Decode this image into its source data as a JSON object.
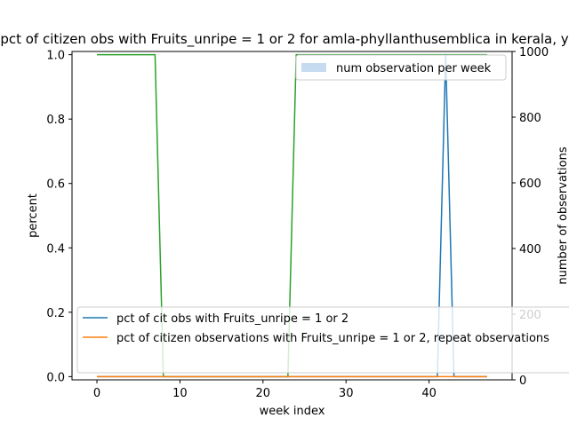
{
  "chart_data": {
    "type": "line",
    "title": "pct of citizen obs with Fruits_unripe = 1 or 2 for amla-phyllanthusemblica in kerala, y",
    "xlabel": "week index",
    "ylabel": "percent",
    "y2label": "number of observations",
    "xlim": [
      -3,
      50
    ],
    "ylim": [
      -0.01,
      1.01
    ],
    "y2lim": [
      0,
      1000
    ],
    "xticks": [
      0,
      10,
      20,
      30,
      40
    ],
    "yticks": [
      0.0,
      0.2,
      0.4,
      0.6,
      0.8,
      1.0
    ],
    "y2ticks": [
      0,
      200,
      400,
      600,
      800,
      1000
    ],
    "x": [
      0,
      1,
      2,
      3,
      4,
      5,
      6,
      7,
      8,
      9,
      10,
      11,
      12,
      13,
      14,
      15,
      16,
      17,
      18,
      19,
      20,
      21,
      22,
      23,
      24,
      25,
      26,
      27,
      28,
      29,
      30,
      31,
      32,
      33,
      34,
      35,
      36,
      37,
      38,
      39,
      40,
      41,
      42,
      43,
      44,
      45,
      46,
      47
    ],
    "series": [
      {
        "name": "pct of cit obs with Fruits_unripe = 1 or 2",
        "color": "#1f77b4",
        "axis": "left",
        "values": [
          0,
          0,
          0,
          0,
          0,
          0,
          0,
          0,
          0,
          0,
          0,
          0,
          0,
          0,
          0,
          0,
          0,
          0,
          0,
          0,
          0,
          0,
          0,
          0,
          0,
          0,
          0,
          0,
          0,
          0,
          0,
          0,
          0,
          0,
          0,
          0,
          0,
          0,
          0,
          0,
          0,
          0,
          1,
          0,
          0,
          0,
          0,
          0
        ]
      },
      {
        "name": "pct of citizen observations with Fruits_unripe = 1 or 2, repeat observations",
        "color": "#ff7f0e",
        "axis": "left",
        "values": [
          0,
          0,
          0,
          0,
          0,
          0,
          0,
          0,
          0,
          0,
          0,
          0,
          0,
          0,
          0,
          0,
          0,
          0,
          0,
          0,
          0,
          0,
          0,
          0,
          0,
          0,
          0,
          0,
          0,
          0,
          0,
          0,
          0,
          0,
          0,
          0,
          0,
          0,
          0,
          0,
          0,
          0,
          0,
          0,
          0,
          0,
          0,
          0
        ]
      },
      {
        "color": "#2ca02c",
        "axis": "left",
        "values": [
          1,
          1,
          1,
          1,
          1,
          1,
          1,
          1,
          0,
          0,
          0,
          0,
          0,
          0,
          0,
          0,
          0,
          0,
          0,
          0,
          0,
          0,
          0,
          0,
          1,
          1,
          1,
          1,
          1,
          1,
          1,
          1,
          1,
          1,
          1,
          1,
          1,
          1,
          1,
          1,
          1,
          1,
          1,
          1,
          1,
          1,
          1,
          1
        ]
      }
    ],
    "bars": {
      "name": "num observation per week",
      "color": "#c6dbef",
      "axis": "right",
      "values": [
        0,
        0,
        0,
        0,
        0,
        0,
        0,
        0,
        0,
        0,
        0,
        0,
        0,
        0,
        0,
        0,
        0,
        0,
        0,
        0,
        0,
        0,
        0,
        0,
        0,
        0,
        0,
        0,
        0,
        0,
        0,
        0,
        0,
        0,
        0,
        0,
        0,
        0,
        0,
        0,
        0,
        0,
        0,
        0,
        0,
        0,
        0,
        0
      ]
    },
    "legend_upper": "upper right",
    "legend_lower": "lower left",
    "grid": false
  }
}
